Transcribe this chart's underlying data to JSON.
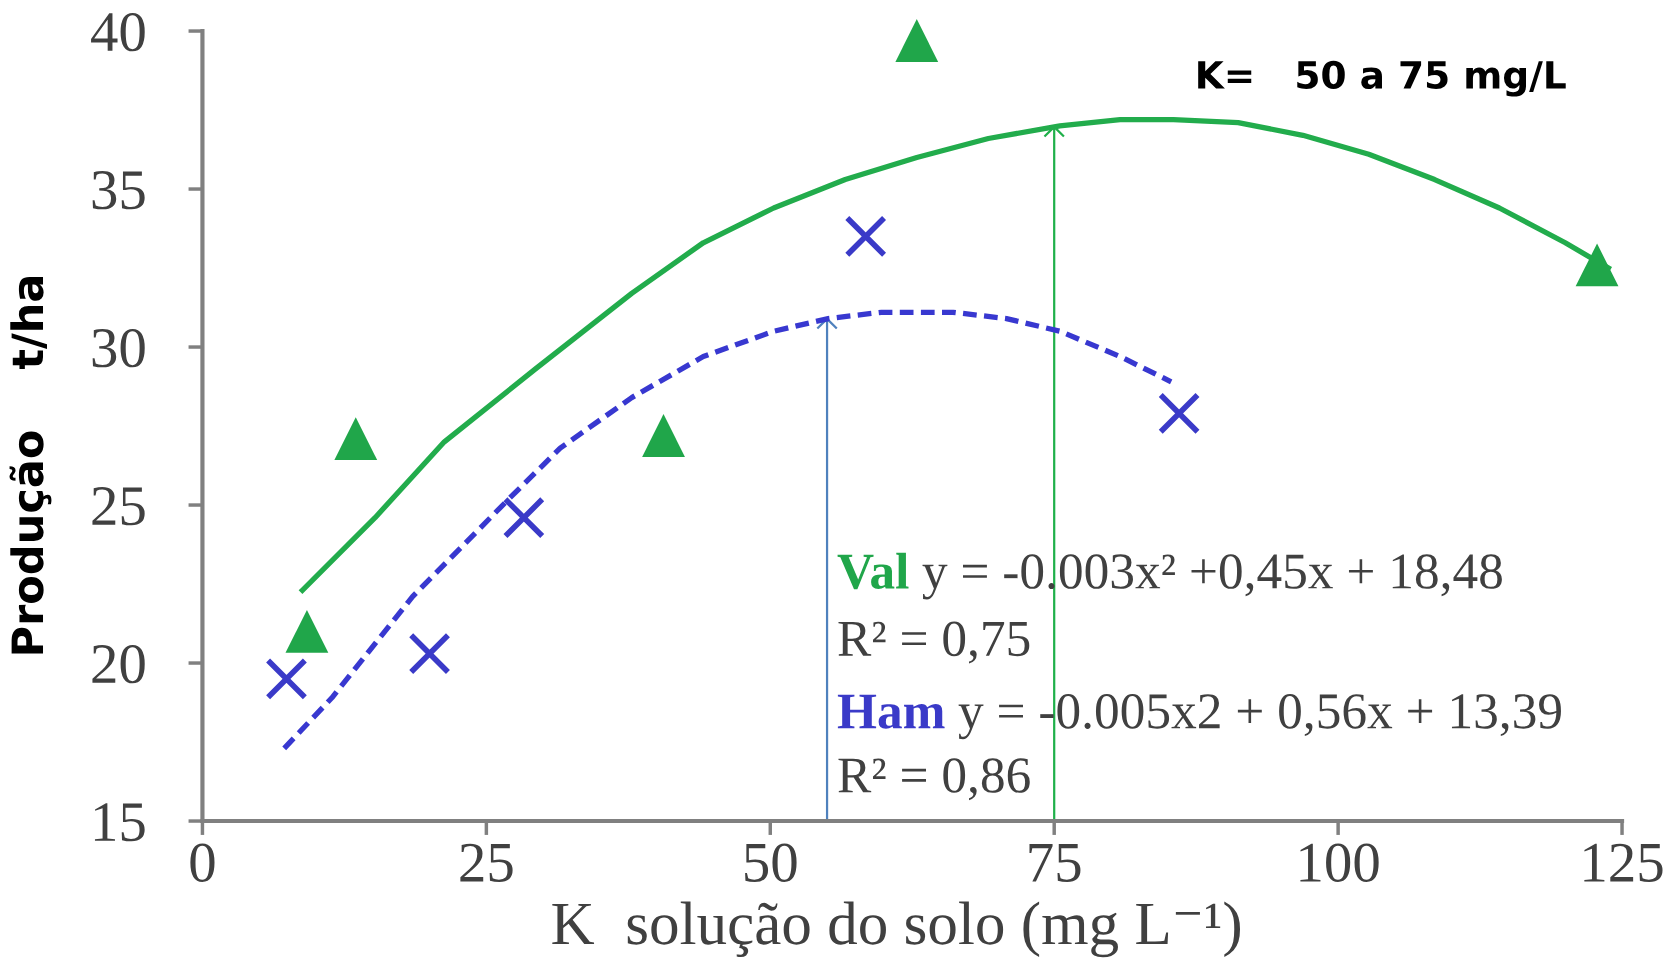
{
  "chart_data": {
    "type": "scatter",
    "xlabel": "K  solução do solo (mg L⁻¹)",
    "ylabel": "Produção    t/ha",
    "xlim": [
      0,
      125
    ],
    "xticks": [
      0,
      25,
      50,
      75,
      100,
      125
    ],
    "ylim": [
      15,
      40
    ],
    "yticks": [
      15,
      20,
      25,
      30,
      35,
      40
    ],
    "grid": false,
    "series": [
      {
        "name": "Val",
        "marker": "triangle",
        "color": "#20a64a",
        "x": [
          9.2,
          13.5,
          40.6,
          62.9,
          122.8
        ],
        "values": [
          21.0,
          27.1,
          27.2,
          39.7,
          32.6
        ]
      },
      {
        "name": "Ham",
        "marker": "cross",
        "color": "#3a3ac8",
        "x": [
          7.4,
          20.0,
          28.3,
          58.4,
          86.0
        ],
        "values": [
          19.5,
          20.3,
          24.6,
          33.5,
          27.9
        ]
      },
      {
        "type": "line",
        "line_style": "solid",
        "marker": "none",
        "color": "#22ac4c",
        "x": [
          8.8,
          15.2,
          21.3,
          29.3,
          37.8,
          44.1,
          50.3,
          56.6,
          62.9,
          69.2,
          75.5,
          80.8,
          85.5,
          91.2,
          96.9,
          102.7,
          108.5,
          114.2,
          120.0,
          123.8
        ],
        "values": [
          22.3,
          24.6,
          27.0,
          29.3,
          31.7,
          33.3,
          34.4,
          35.3,
          36.0,
          36.6,
          37.0,
          37.2,
          37.2,
          37.1,
          36.7,
          36.1,
          35.3,
          34.4,
          33.3,
          32.5
        ]
      },
      {
        "type": "line",
        "line_style": "dashed",
        "marker": "none",
        "color": "#3838d0",
        "x": [
          7.2,
          11.4,
          18.5,
          27.0,
          31.5,
          37.8,
          44.1,
          50.3,
          55.1,
          59.8,
          62.9,
          66.1,
          70.8,
          75.5,
          80.8,
          85.3
        ],
        "values": [
          17.3,
          18.9,
          22.1,
          25.2,
          26.8,
          28.4,
          29.7,
          30.5,
          30.9,
          31.1,
          31.1,
          31.1,
          30.9,
          30.5,
          29.7,
          28.9
        ]
      }
    ],
    "ref_lines": [
      {
        "axis": "x",
        "value": 75,
        "color": "#1fb04a"
      },
      {
        "axis": "x",
        "value": 55,
        "color": "#4f81bd"
      }
    ],
    "annotations": [
      "y = -0.003x² +0,45x + 18,48",
      "R² = 0,75",
      "y = -0.005x2 + 0,56x + 13,39",
      "R² = 0,86",
      "K=   50 a 75 mg/L"
    ]
  }
}
